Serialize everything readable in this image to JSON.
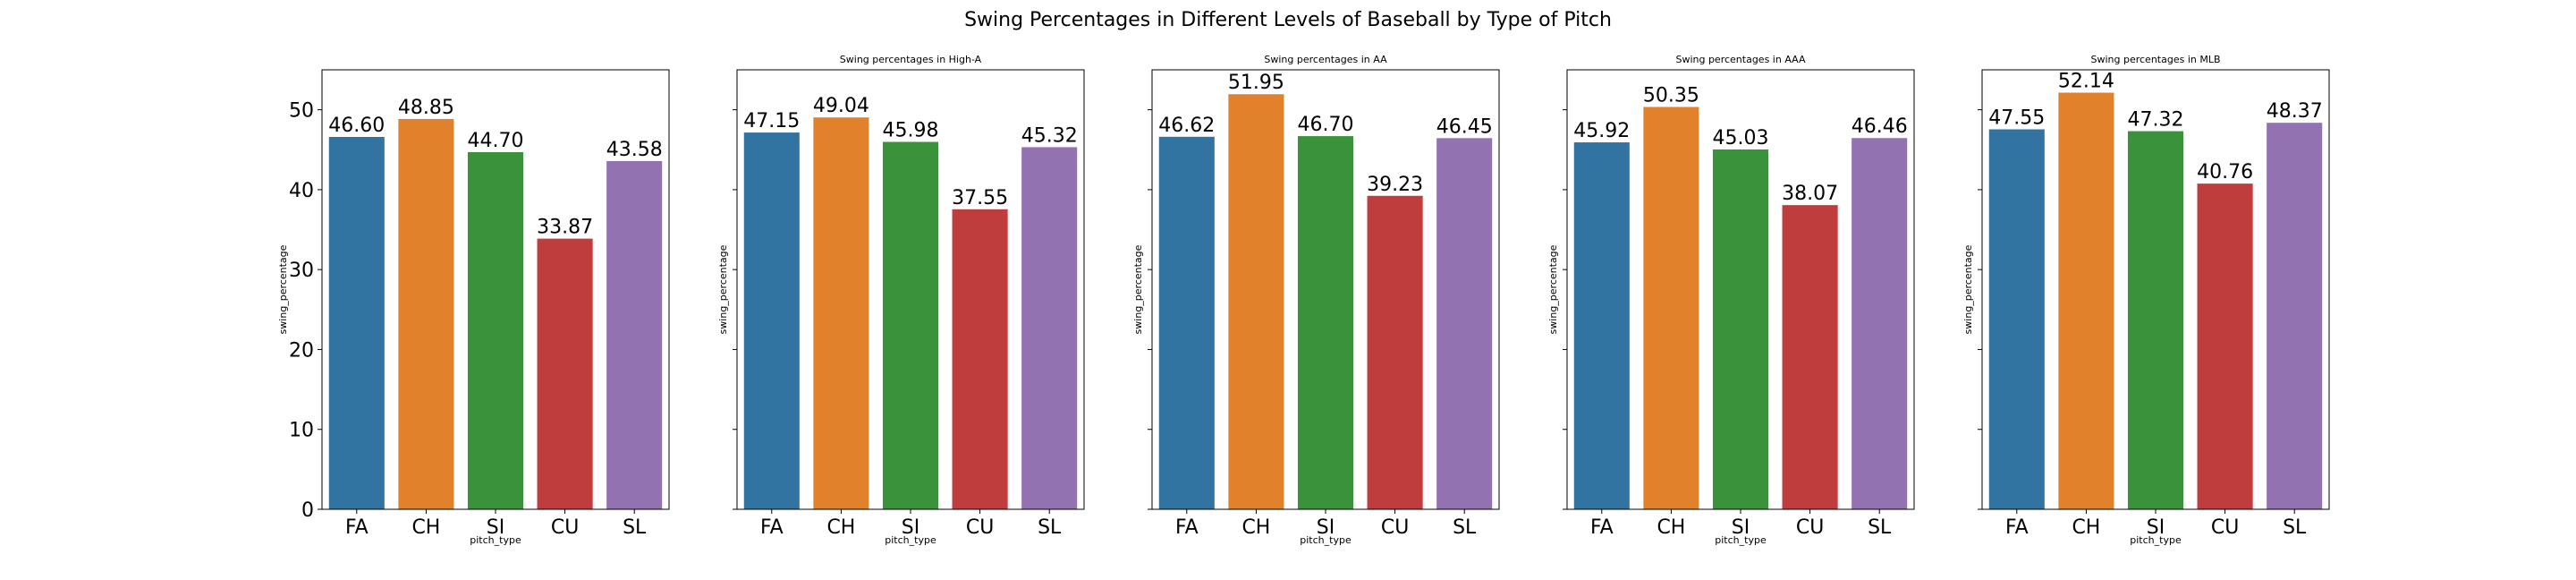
{
  "figure": {
    "suptitle": "Swing Percentages in Different Levels of Baseball by Type of Pitch"
  },
  "chart_data": [
    {
      "type": "bar",
      "title": "",
      "xlabel": "pitch_type",
      "ylabel": "swing_percentage",
      "categories": [
        "FA",
        "CH",
        "SI",
        "CU",
        "SL"
      ],
      "values": [
        46.6,
        48.85,
        44.7,
        33.87,
        43.58
      ],
      "value_labels": [
        "46.60",
        "48.85",
        "44.70",
        "33.87",
        "43.58"
      ],
      "ylim": [
        0,
        55
      ],
      "yticks": [
        0,
        10,
        20,
        30,
        40,
        50
      ],
      "show_ytick_labels": true,
      "colors": [
        "#3274a1",
        "#e1812c",
        "#3a923a",
        "#c03d3e",
        "#9372b2"
      ],
      "grid": false
    },
    {
      "type": "bar",
      "title": "Swing percentages in High-A",
      "xlabel": "pitch_type",
      "ylabel": "swing_percentage",
      "categories": [
        "FA",
        "CH",
        "SI",
        "CU",
        "SL"
      ],
      "values": [
        47.15,
        49.04,
        45.98,
        37.55,
        45.32
      ],
      "value_labels": [
        "47.15",
        "49.04",
        "45.98",
        "37.55",
        "45.32"
      ],
      "ylim": [
        0,
        55
      ],
      "yticks": [
        0,
        10,
        20,
        30,
        40,
        50
      ],
      "show_ytick_labels": false,
      "colors": [
        "#3274a1",
        "#e1812c",
        "#3a923a",
        "#c03d3e",
        "#9372b2"
      ],
      "grid": false
    },
    {
      "type": "bar",
      "title": "Swing percentages in AA",
      "xlabel": "pitch_type",
      "ylabel": "swing_percentage",
      "categories": [
        "FA",
        "CH",
        "SI",
        "CU",
        "SL"
      ],
      "values": [
        46.62,
        51.95,
        46.7,
        39.23,
        46.45
      ],
      "value_labels": [
        "46.62",
        "51.95",
        "46.70",
        "39.23",
        "46.45"
      ],
      "ylim": [
        0,
        55
      ],
      "yticks": [
        0,
        10,
        20,
        30,
        40,
        50
      ],
      "show_ytick_labels": false,
      "colors": [
        "#3274a1",
        "#e1812c",
        "#3a923a",
        "#c03d3e",
        "#9372b2"
      ],
      "grid": false
    },
    {
      "type": "bar",
      "title": "Swing percentages in AAA",
      "xlabel": "pitch_type",
      "ylabel": "swing_percentage",
      "categories": [
        "FA",
        "CH",
        "SI",
        "CU",
        "SL"
      ],
      "values": [
        45.92,
        50.35,
        45.03,
        38.07,
        46.46
      ],
      "value_labels": [
        "45.92",
        "50.35",
        "45.03",
        "38.07",
        "46.46"
      ],
      "ylim": [
        0,
        55
      ],
      "yticks": [
        0,
        10,
        20,
        30,
        40,
        50
      ],
      "show_ytick_labels": false,
      "colors": [
        "#3274a1",
        "#e1812c",
        "#3a923a",
        "#c03d3e",
        "#9372b2"
      ],
      "grid": false
    },
    {
      "type": "bar",
      "title": "Swing percentages in MLB",
      "xlabel": "pitch_type",
      "ylabel": "swing_percentage",
      "categories": [
        "FA",
        "CH",
        "SI",
        "CU",
        "SL"
      ],
      "values": [
        47.55,
        52.14,
        47.32,
        40.76,
        48.37
      ],
      "value_labels": [
        "47.55",
        "52.14",
        "47.32",
        "40.76",
        "48.37"
      ],
      "ylim": [
        0,
        55
      ],
      "yticks": [
        0,
        10,
        20,
        30,
        40,
        50
      ],
      "show_ytick_labels": false,
      "colors": [
        "#3274a1",
        "#e1812c",
        "#3a923a",
        "#c03d3e",
        "#9372b2"
      ],
      "grid": false
    }
  ]
}
